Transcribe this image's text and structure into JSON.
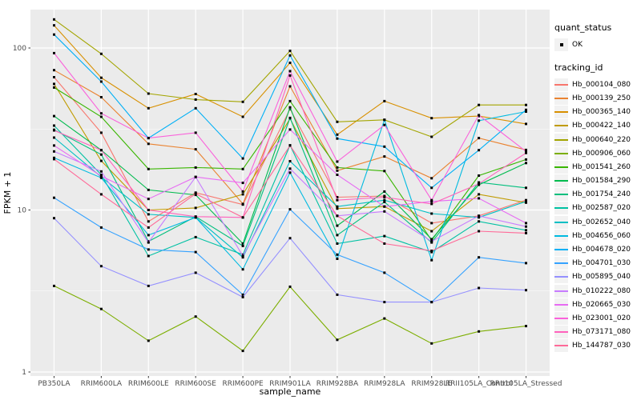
{
  "chart_data": {
    "type": "line",
    "title": "",
    "xlabel": "sample_name",
    "ylabel": "FPKM + 1",
    "y_scale": "log10",
    "y_ticks": [
      1,
      10,
      100
    ],
    "y_minor_gridlines": [
      3.162,
      31.62
    ],
    "ylim": [
      0.95,
      170
    ],
    "grid": "on",
    "legend_position": "right",
    "marker": "black-square",
    "categories": [
      "PB350LA",
      "RRIM600LA",
      "RRIM600LE",
      "RRIM600SE",
      "RRIM600PE",
      "RRIM901LA",
      "RRIM928BA",
      "RRIM928LA",
      "RRIM928LE",
      "RRII105LA_Control",
      "RRII105LA_Stressed"
    ],
    "series": [
      {
        "name": "Hb_000104_080",
        "color": "#F8766D",
        "values": [
          66,
          30,
          8.5,
          12.8,
          10.8,
          42,
          12,
          12.2,
          8.3,
          9.2,
          11.5
        ]
      },
      {
        "name": "Hb_000139_250",
        "color": "#EA8331",
        "values": [
          73,
          49.7,
          25.6,
          23.7,
          10.9,
          58,
          17.5,
          21.4,
          15.7,
          27.8,
          23.5
        ]
      },
      {
        "name": "Hb_000365_140",
        "color": "#D89000",
        "values": [
          138,
          65.5,
          42.5,
          52,
          37.6,
          81,
          29.2,
          47,
          36.9,
          38,
          34
        ]
      },
      {
        "name": "Hb_000422_140",
        "color": "#C09B00",
        "values": [
          60,
          20.1,
          10,
          10.3,
          12.5,
          36.6,
          10.2,
          10.5,
          7.4,
          12.5,
          11.1
        ]
      },
      {
        "name": "Hb_000640_220",
        "color": "#A3A500",
        "values": [
          150,
          92,
          52.3,
          48,
          46.5,
          96,
          35,
          36,
          28.3,
          44.5,
          44.5
        ]
      },
      {
        "name": "Hb_000906_060",
        "color": "#7CAE00",
        "values": [
          3.4,
          2.45,
          1.56,
          2.2,
          1.35,
          3.36,
          1.58,
          2.14,
          1.5,
          1.78,
          1.92
        ]
      },
      {
        "name": "Hb_001541_260",
        "color": "#39B600",
        "values": [
          57,
          37.6,
          17.9,
          18.3,
          17.9,
          47,
          18.3,
          17.4,
          6.5,
          16.3,
          20.5
        ]
      },
      {
        "name": "Hb_001584_290",
        "color": "#00BB4E",
        "values": [
          38,
          23.4,
          13.3,
          12.4,
          6.2,
          43,
          8,
          13,
          6.6,
          14.3,
          19.5
        ]
      },
      {
        "name": "Hb_001754_240",
        "color": "#00BF7D",
        "values": [
          31.3,
          22,
          6.4,
          9.1,
          6,
          37,
          7,
          11.2,
          6.3,
          14.8,
          13.7
        ]
      },
      {
        "name": "Hb_002587_020",
        "color": "#00C1A3",
        "values": [
          33.2,
          16.5,
          5.2,
          6.8,
          5.3,
          25.1,
          6.2,
          6.9,
          5.5,
          8.5,
          7.5
        ]
      },
      {
        "name": "Hb_002652_040",
        "color": "#00BFC4",
        "values": [
          28,
          16,
          9.4,
          9,
          5.1,
          20,
          10.5,
          11.5,
          9.5,
          9,
          11.3
        ]
      },
      {
        "name": "Hb_004656_060",
        "color": "#00BAE0",
        "values": [
          21,
          15.8,
          7,
          9,
          4.3,
          17,
          5,
          36,
          4.9,
          35.6,
          40.5
        ]
      },
      {
        "name": "Hb_004678_020",
        "color": "#00B0F6",
        "values": [
          121,
          62,
          27.8,
          42.5,
          20.8,
          90,
          27.6,
          24.6,
          13.7,
          23.4,
          41.5
        ]
      },
      {
        "name": "Hb_004701_030",
        "color": "#35A2FF",
        "values": [
          11.9,
          7.8,
          5.7,
          5.5,
          3,
          10.1,
          5.3,
          4.1,
          2.7,
          5.1,
          4.7
        ]
      },
      {
        "name": "Hb_005895_040",
        "color": "#9590FF",
        "values": [
          8.9,
          4.5,
          3.4,
          4.1,
          2.9,
          6.7,
          3,
          2.7,
          2.7,
          3.3,
          3.2
        ]
      },
      {
        "name": "Hb_010222_080",
        "color": "#C77CFF",
        "values": [
          23,
          17.3,
          6.3,
          16,
          5.2,
          18,
          9.2,
          9.8,
          6.4,
          9.2,
          7.9
        ]
      },
      {
        "name": "Hb_020665_030",
        "color": "#E76BF3",
        "values": [
          25,
          16.2,
          11.7,
          16,
          14.7,
          31.4,
          16.5,
          10.5,
          11.3,
          11.8,
          8.3
        ]
      },
      {
        "name": "Hb_023001_020",
        "color": "#FA62DB",
        "values": [
          93,
          39.5,
          27.8,
          30,
          13,
          72,
          19.9,
          33.5,
          11.5,
          38.5,
          23
        ]
      },
      {
        "name": "Hb_073171_080",
        "color": "#FF62BC",
        "values": [
          31,
          23.4,
          10,
          9.1,
          9,
          67.6,
          11.5,
          12,
          10.9,
          14.5,
          22.5
        ]
      },
      {
        "name": "Hb_144787_030",
        "color": "#FF6A98",
        "values": [
          20.6,
          12.5,
          7.8,
          12.6,
          9,
          25,
          9.2,
          6.2,
          5.6,
          7.4,
          7.2
        ]
      }
    ]
  },
  "legend": {
    "quant_title": "quant_status",
    "quant_items": [
      {
        "label": "OK",
        "marker": "black-square"
      }
    ],
    "tracking_title": "tracking_id"
  },
  "style_colors": {
    "panel_background": "#EBEBEB",
    "gridline": "#FFFFFF",
    "tick_text": "#4d4d4d",
    "axis_text": "#000000",
    "marker": "#000000",
    "legend_key_background": "#F2F2F2"
  }
}
